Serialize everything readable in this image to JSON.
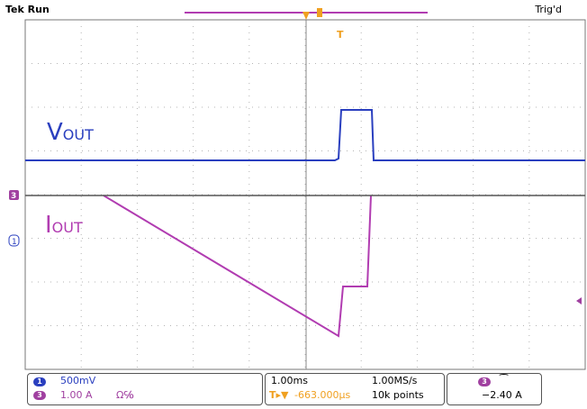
{
  "header": {
    "status": "Tek Run",
    "trigger_status": "Trig'd",
    "trigger_marker": "T"
  },
  "channels": {
    "ch1": {
      "number": "1",
      "scale": "500mV",
      "color": "#2a3fbf"
    },
    "ch3": {
      "number": "3",
      "scale": "1.00 A",
      "suffix": "Ω℅",
      "color": "#a040a0"
    }
  },
  "trace_labels": {
    "vout": {
      "main": "V",
      "sub": "OUT"
    },
    "iout": {
      "main": "I",
      "sub": "OUT"
    }
  },
  "timebase": {
    "scale": "1.00ms",
    "sample_rate": "1.00MS/s",
    "position": "-663.000μs",
    "record_length": "10k points"
  },
  "trigger": {
    "channel": "3",
    "slope": "rising",
    "level": "−2.40 A"
  },
  "colors": {
    "ch1": "#2a3fbf",
    "ch3": "#b13cb1",
    "trigger": "#f0a020",
    "grid": "#9a9a9a"
  }
}
